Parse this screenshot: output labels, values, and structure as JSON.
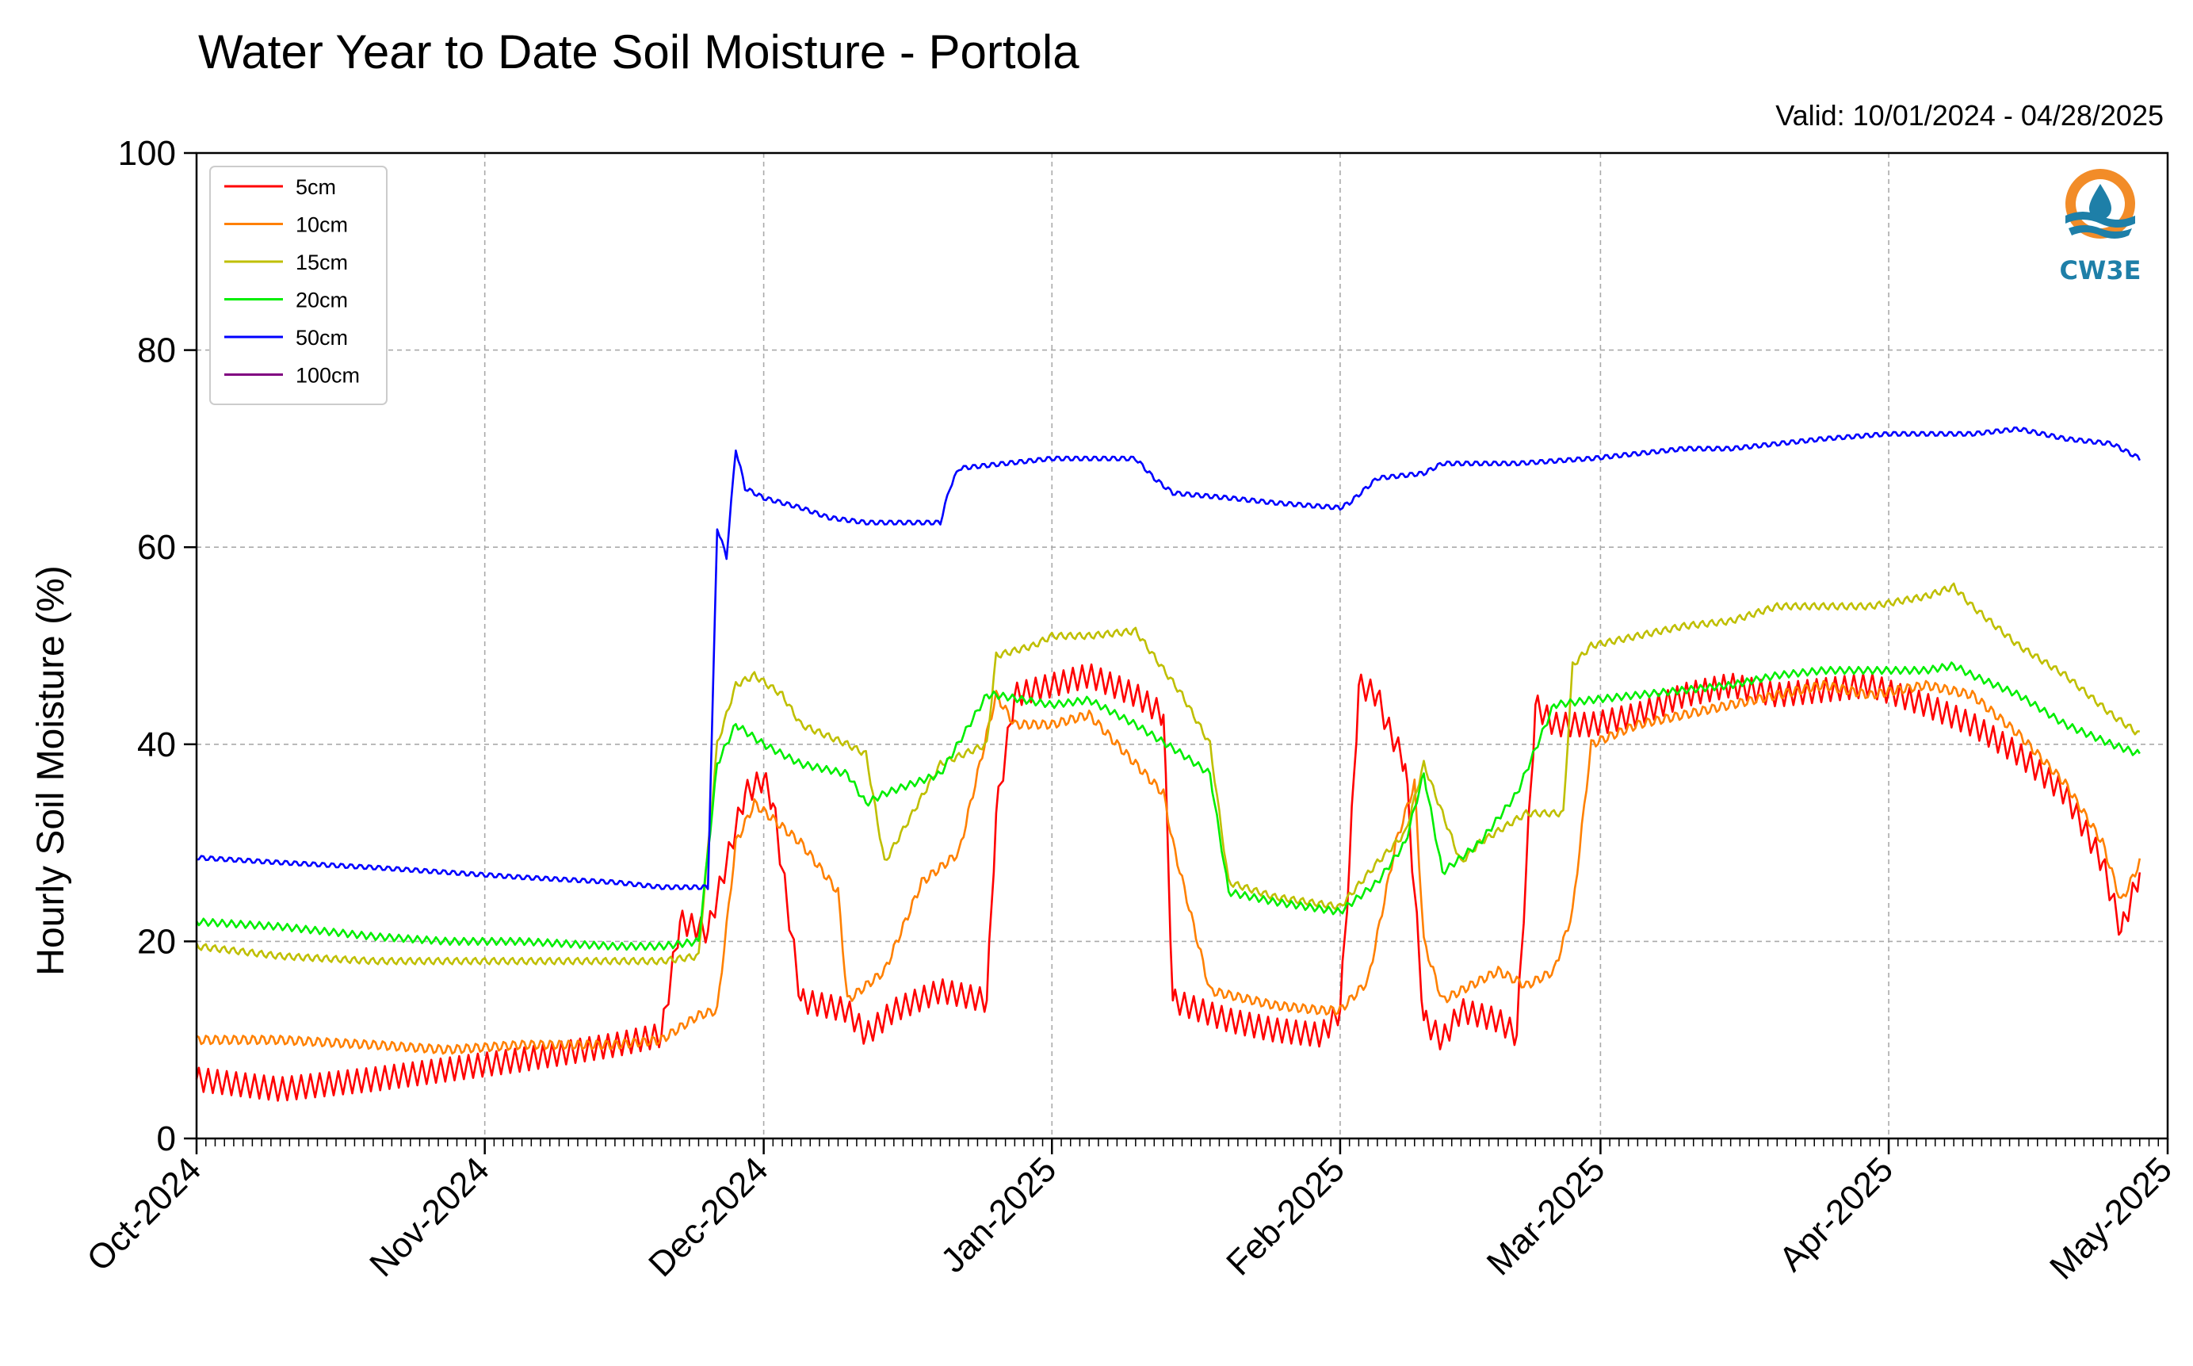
{
  "chart_data": {
    "type": "line",
    "title": "Water Year to Date Soil Moisture - Portola",
    "subtitle": "Valid: 10/01/2024 - 04/28/2025",
    "ylabel": "Hourly Soil Moisture (%)",
    "xlabel": "",
    "ylim": [
      0,
      100
    ],
    "xlim": [
      "2024-10-01",
      "2025-05-01"
    ],
    "yticks": [
      0,
      20,
      40,
      60,
      80,
      100
    ],
    "xticks": [
      {
        "date": "2024-10-01",
        "label": "Oct-2024"
      },
      {
        "date": "2024-11-01",
        "label": "Nov-2024"
      },
      {
        "date": "2024-12-01",
        "label": "Dec-2024"
      },
      {
        "date": "2025-01-01",
        "label": "Jan-2025"
      },
      {
        "date": "2025-02-01",
        "label": "Feb-2025"
      },
      {
        "date": "2025-03-01",
        "label": "Mar-2025"
      },
      {
        "date": "2025-04-01",
        "label": "Apr-2025"
      },
      {
        "date": "2025-05-01",
        "label": "May-2025"
      }
    ],
    "grid": true,
    "legend_position": "top-left",
    "series": [
      {
        "name": "5cm",
        "color": "#ff0000",
        "x": [
          "2024-10-01",
          "2024-10-10",
          "2024-10-20",
          "2024-10-28",
          "2024-11-05",
          "2024-11-15",
          "2024-11-20",
          "2024-11-22",
          "2024-11-25",
          "2024-11-27",
          "2024-11-29",
          "2024-12-01",
          "2024-12-02",
          "2024-12-05",
          "2024-12-10",
          "2024-12-12",
          "2024-12-15",
          "2024-12-20",
          "2024-12-25",
          "2024-12-26",
          "2024-12-28",
          "2025-01-01",
          "2025-01-05",
          "2025-01-10",
          "2025-01-13",
          "2025-01-14",
          "2025-01-20",
          "2025-01-25",
          "2025-01-30",
          "2025-02-01",
          "2025-02-02",
          "2025-02-03",
          "2025-02-05",
          "2025-02-06",
          "2025-02-08",
          "2025-02-10",
          "2025-02-12",
          "2025-02-14",
          "2025-02-18",
          "2025-02-20",
          "2025-02-22",
          "2025-02-24",
          "2025-02-28",
          "2025-03-05",
          "2025-03-10",
          "2025-03-15",
          "2025-03-20",
          "2025-03-25",
          "2025-03-30",
          "2025-04-05",
          "2025-04-10",
          "2025-04-15",
          "2025-04-20",
          "2025-04-24",
          "2025-04-26",
          "2025-04-28"
        ],
        "values": [
          6,
          5,
          6,
          7,
          8,
          9.5,
          10.5,
          22,
          21,
          28,
          35,
          36.5,
          34,
          14,
          13,
          10.5,
          13,
          15,
          14,
          33,
          45,
          46,
          47,
          45,
          43,
          14,
          12,
          11,
          10.5,
          13,
          28,
          46,
          45,
          42,
          38,
          12,
          10,
          13,
          12,
          10.5,
          44,
          42,
          42,
          43,
          45,
          46,
          45,
          45.5,
          46,
          44,
          42,
          39,
          35,
          28,
          21,
          27
        ]
      },
      {
        "name": "10cm",
        "color": "#ff8000",
        "x": [
          "2024-10-01",
          "2024-10-10",
          "2024-10-20",
          "2024-10-28",
          "2024-11-05",
          "2024-11-15",
          "2024-11-20",
          "2024-11-24",
          "2024-11-26",
          "2024-11-28",
          "2024-11-30",
          "2024-12-05",
          "2024-12-09",
          "2024-12-10",
          "2024-12-14",
          "2024-12-18",
          "2024-12-22",
          "2024-12-26",
          "2024-12-28",
          "2025-01-01",
          "2025-01-05",
          "2025-01-10",
          "2025-01-13",
          "2025-01-14",
          "2025-01-18",
          "2025-01-25",
          "2025-01-30",
          "2025-02-01",
          "2025-02-04",
          "2025-02-07",
          "2025-02-09",
          "2025-02-10",
          "2025-02-12",
          "2025-02-18",
          "2025-02-21",
          "2025-02-24",
          "2025-02-26",
          "2025-02-28",
          "2025-03-05",
          "2025-03-10",
          "2025-03-15",
          "2025-03-20",
          "2025-03-25",
          "2025-03-30",
          "2025-04-05",
          "2025-04-10",
          "2025-04-15",
          "2025-04-20",
          "2025-04-24",
          "2025-04-26",
          "2025-04-28"
        ],
        "values": [
          10,
          10,
          9.5,
          9,
          9.5,
          9.5,
          10,
          12.5,
          13,
          30,
          34,
          30,
          25,
          14,
          17,
          26,
          29,
          45,
          42,
          42,
          43,
          38,
          35,
          30,
          15,
          13.5,
          13,
          13,
          16,
          30,
          36,
          20,
          14,
          17,
          15.5,
          17,
          23,
          40,
          42,
          43,
          44,
          45,
          46,
          45,
          46,
          45,
          41,
          36,
          30,
          24,
          28
        ]
      },
      {
        "name": "15cm",
        "color": "#bfbf00",
        "x": [
          "2024-10-01",
          "2024-10-10",
          "2024-10-20",
          "2024-10-28",
          "2024-11-05",
          "2024-11-15",
          "2024-11-20",
          "2024-11-24",
          "2024-11-26",
          "2024-11-28",
          "2024-11-30",
          "2024-12-03",
          "2024-12-05",
          "2024-12-10",
          "2024-12-12",
          "2024-12-14",
          "2024-12-20",
          "2024-12-25",
          "2024-12-26",
          "2024-12-30",
          "2025-01-01",
          "2025-01-05",
          "2025-01-10",
          "2025-01-15",
          "2025-01-18",
          "2025-01-20",
          "2025-01-25",
          "2025-02-01",
          "2025-02-05",
          "2025-02-08",
          "2025-02-10",
          "2025-02-12",
          "2025-02-14",
          "2025-02-16",
          "2025-02-21",
          "2025-02-25",
          "2025-02-26",
          "2025-02-28",
          "2025-03-05",
          "2025-03-10",
          "2025-03-15",
          "2025-03-20",
          "2025-03-25",
          "2025-03-30",
          "2025-04-05",
          "2025-04-08",
          "2025-04-10",
          "2025-04-15",
          "2025-04-20",
          "2025-04-25",
          "2025-04-28"
        ],
        "values": [
          19.5,
          18.5,
          18,
          18,
          18,
          18,
          18,
          18.5,
          40,
          46,
          47,
          45,
          42,
          40,
          39,
          28,
          38,
          40,
          49,
          50,
          51,
          51,
          51.5,
          45,
          40,
          26,
          24.5,
          23.5,
          28,
          31,
          38,
          33,
          28,
          30,
          33,
          33,
          48,
          50,
          51,
          52,
          52.5,
          54,
          54,
          54,
          55,
          56,
          54,
          50,
          47,
          43,
          41
        ]
      },
      {
        "name": "20cm",
        "color": "#00ee00",
        "x": [
          "2024-10-01",
          "2024-10-10",
          "2024-10-20",
          "2024-10-28",
          "2024-11-05",
          "2024-11-15",
          "2024-11-20",
          "2024-11-24",
          "2024-11-26",
          "2024-11-28",
          "2024-12-01",
          "2024-12-05",
          "2024-12-10",
          "2024-12-12",
          "2024-12-14",
          "2024-12-20",
          "2024-12-25",
          "2024-12-26",
          "2025-01-01",
          "2025-01-05",
          "2025-01-10",
          "2025-01-15",
          "2025-01-18",
          "2025-01-20",
          "2025-01-25",
          "2025-02-01",
          "2025-02-05",
          "2025-02-08",
          "2025-02-10",
          "2025-02-12",
          "2025-02-16",
          "2025-02-20",
          "2025-02-24",
          "2025-02-28",
          "2025-03-05",
          "2025-03-10",
          "2025-03-15",
          "2025-03-20",
          "2025-03-25",
          "2025-03-30",
          "2025-04-05",
          "2025-04-08",
          "2025-04-10",
          "2025-04-15",
          "2025-04-20",
          "2025-04-25",
          "2025-04-28"
        ],
        "values": [
          22,
          21.5,
          20.5,
          20,
          20,
          19.5,
          19.5,
          20,
          38,
          42,
          40,
          38,
          37,
          34,
          35,
          37,
          45,
          45,
          44,
          44.5,
          42,
          39,
          37,
          25,
          24,
          23,
          26,
          30,
          37,
          27,
          30,
          35,
          44,
          44.5,
          45,
          45.5,
          46,
          47,
          47.5,
          47.5,
          47.5,
          48,
          47,
          45,
          42,
          40,
          39
        ]
      },
      {
        "name": "50cm",
        "color": "#0000ff",
        "x": [
          "2024-10-01",
          "2024-10-10",
          "2024-10-20",
          "2024-10-28",
          "2024-11-05",
          "2024-11-15",
          "2024-11-20",
          "2024-11-25",
          "2024-11-26",
          "2024-11-27",
          "2024-11-28",
          "2024-11-29",
          "2024-12-01",
          "2024-12-05",
          "2024-12-08",
          "2024-12-12",
          "2024-12-20",
          "2024-12-21",
          "2024-12-22",
          "2025-01-01",
          "2025-01-10",
          "2025-01-12",
          "2025-01-14",
          "2025-01-20",
          "2025-01-25",
          "2025-02-01",
          "2025-02-02",
          "2025-02-05",
          "2025-02-10",
          "2025-02-12",
          "2025-02-20",
          "2025-02-28",
          "2025-03-05",
          "2025-03-10",
          "2025-03-15",
          "2025-03-20",
          "2025-03-25",
          "2025-04-01",
          "2025-04-05",
          "2025-04-10",
          "2025-04-15",
          "2025-04-20",
          "2025-04-25",
          "2025-04-28"
        ],
        "values": [
          28.5,
          28,
          27.5,
          27,
          26.5,
          26,
          25.5,
          25.5,
          62,
          59,
          70,
          66,
          65,
          64,
          63,
          62.5,
          62.5,
          66,
          68,
          69,
          69,
          67,
          65.5,
          65,
          64.5,
          64,
          64.5,
          67,
          67.5,
          68.5,
          68.5,
          69,
          69.5,
          70,
          70,
          70.5,
          71,
          71.5,
          71.5,
          71.5,
          72,
          71,
          70.5,
          69
        ]
      },
      {
        "name": "100cm",
        "color": "#800080",
        "x": [],
        "values": []
      }
    ]
  },
  "logo": {
    "text": "CW3E",
    "colors": {
      "ring": "#f28c28",
      "wave": "#1e7fa8"
    }
  }
}
